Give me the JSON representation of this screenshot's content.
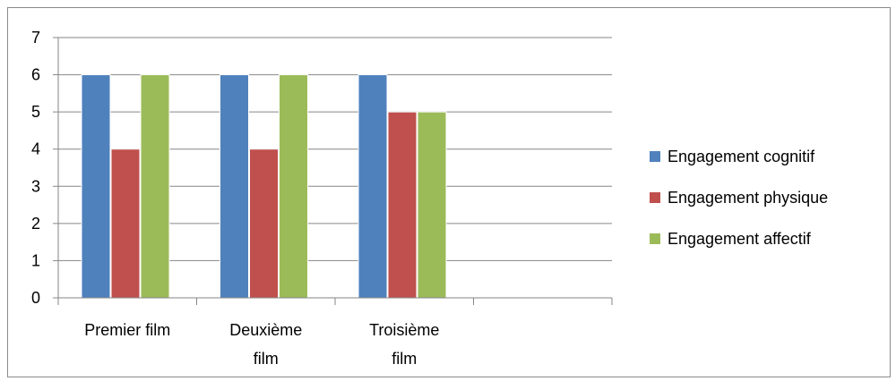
{
  "chart_data": {
    "type": "bar",
    "title": "",
    "xlabel": "",
    "ylabel": "",
    "ylim": [
      0,
      7
    ],
    "yticks": [
      0,
      1,
      2,
      3,
      4,
      5,
      6,
      7
    ],
    "grid": true,
    "legend_position": "right",
    "categories": [
      [
        "Premier film"
      ],
      [
        "Deuxième",
        "film"
      ],
      [
        "Troisième",
        "film"
      ],
      []
    ],
    "series": [
      {
        "name": "Engagement cognitif",
        "color": "#4f81bd",
        "values": [
          6,
          6,
          6,
          null
        ]
      },
      {
        "name": "Engagement physique",
        "color": "#c0504d",
        "values": [
          4,
          4,
          5,
          null
        ]
      },
      {
        "name": "Engagement affectif",
        "color": "#9bbb59",
        "values": [
          6,
          6,
          5,
          null
        ]
      }
    ]
  }
}
